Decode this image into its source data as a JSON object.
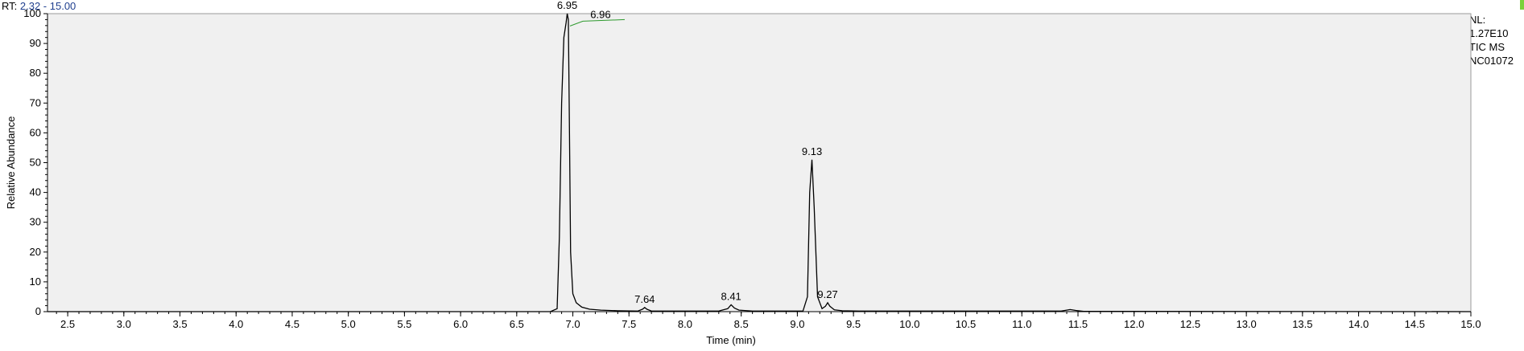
{
  "header": {
    "rt_prefix": "RT:",
    "rt_range": "2.32 - 15.00"
  },
  "info": {
    "nl_label": "NL:",
    "nl_value": "1.27E10",
    "scan_type": "TIC  MS",
    "sample_id": "NC01072"
  },
  "colors": {
    "background": "#ffffff",
    "plot_background": "#f0f0f0",
    "trace": "#000000",
    "baseline_marker": "#2e9a2e",
    "rt_text": "#1f3f8f",
    "corner_mark": "#7bd13a"
  },
  "chart_data": {
    "type": "line",
    "title": "",
    "xlabel": "Time (min)",
    "ylabel": "Relative Abundance",
    "xlim": [
      2.32,
      15.0
    ],
    "ylim": [
      0,
      100
    ],
    "xticks": [
      "2.5",
      "3.0",
      "3.5",
      "4.0",
      "4.5",
      "5.0",
      "5.5",
      "6.0",
      "6.5",
      "7.0",
      "7.5",
      "8.0",
      "8.5",
      "9.0",
      "9.5",
      "10.0",
      "10.5",
      "11.0",
      "11.5",
      "12.0",
      "12.5",
      "13.0",
      "13.5",
      "14.0",
      "14.5",
      "15.0"
    ],
    "yticks": [
      "0",
      "10",
      "20",
      "30",
      "40",
      "50",
      "60",
      "70",
      "80",
      "90",
      "100"
    ],
    "grid": false,
    "series": [
      {
        "x": [
          2.32,
          6.8,
          6.86,
          6.88,
          6.9,
          6.92,
          6.94,
          6.95,
          6.96,
          6.97,
          6.98,
          7.0,
          7.03,
          7.08,
          7.15,
          7.25,
          7.4,
          7.58,
          7.62,
          7.64,
          7.66,
          7.7,
          8.3,
          8.38,
          8.41,
          8.44,
          8.48,
          8.6,
          9.05,
          9.09,
          9.11,
          9.13,
          9.15,
          9.18,
          9.22,
          9.25,
          9.27,
          9.29,
          9.33,
          9.4,
          9.55,
          11.35,
          11.4,
          11.43,
          11.48,
          11.55,
          15.0
        ],
        "y": [
          0,
          0,
          1,
          25,
          70,
          92,
          97,
          100,
          98,
          60,
          20,
          6,
          3,
          1.5,
          0.8,
          0.5,
          0.3,
          0.2,
          0.8,
          1.4,
          0.8,
          0.2,
          0.2,
          1.0,
          2.3,
          1.2,
          0.5,
          0.2,
          0.2,
          5,
          40,
          51,
          35,
          5,
          1,
          1.8,
          3.0,
          1.8,
          0.6,
          0.3,
          0.2,
          0.2,
          0.5,
          0.7,
          0.4,
          0.1,
          0
        ]
      }
    ],
    "annotations": [
      {
        "label": "6.95",
        "x": 6.95,
        "y": 100
      },
      {
        "label": "6.96",
        "x": 6.96,
        "y": 98,
        "offset": "right"
      },
      {
        "label": "7.64",
        "x": 7.64,
        "y": 1.4
      },
      {
        "label": "8.41",
        "x": 8.41,
        "y": 2.3
      },
      {
        "label": "9.13",
        "x": 9.13,
        "y": 51
      },
      {
        "label": "9.27",
        "x": 9.27,
        "y": 3.0
      }
    ]
  }
}
